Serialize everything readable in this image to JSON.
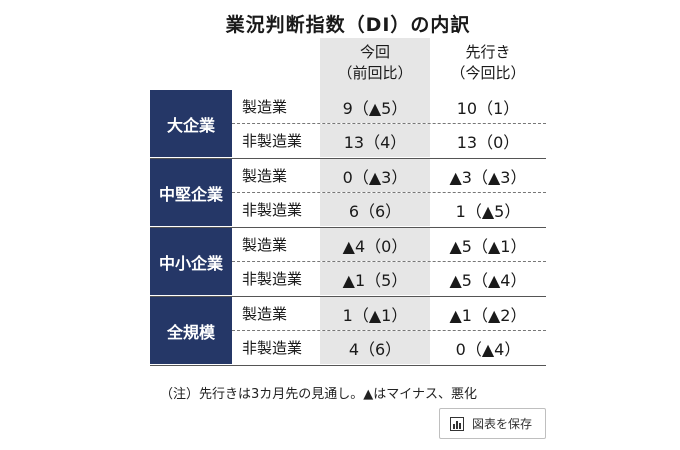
{
  "title": "業況判断指数（DI）の内訳",
  "headers": {
    "current": "今回",
    "current_sub": "（前回比）",
    "future": "先行き",
    "future_sub": "（今回比）"
  },
  "chart_data": {
    "type": "table",
    "groups": [
      {
        "name": "大企業",
        "rows": [
          {
            "label": "製造業",
            "current": "9（▲5）",
            "future": "10（1）"
          },
          {
            "label": "非製造業",
            "current": "13（4）",
            "future": "13（0）"
          }
        ]
      },
      {
        "name": "中堅企業",
        "rows": [
          {
            "label": "製造業",
            "current": "0（▲3）",
            "future": "▲3（▲3）"
          },
          {
            "label": "非製造業",
            "current": "6（6）",
            "future": "1（▲5）"
          }
        ]
      },
      {
        "name": "中小企業",
        "rows": [
          {
            "label": "製造業",
            "current": "▲4（0）",
            "future": "▲5（▲1）"
          },
          {
            "label": "非製造業",
            "current": "▲1（5）",
            "future": "▲5（▲4）"
          }
        ]
      },
      {
        "name": "全規模",
        "rows": [
          {
            "label": "製造業",
            "current": "1（▲1）",
            "future": "▲1（▲2）"
          },
          {
            "label": "非製造業",
            "current": "4（6）",
            "future": "0（▲4）"
          }
        ]
      }
    ]
  },
  "note": "（注）先行きは3カ月先の見通し。▲はマイナス、悪化",
  "save_button": {
    "label": "図表を保存",
    "icon": "bar-chart-icon"
  },
  "colors": {
    "group_bg": "#253767",
    "highlight_col": "#e6e6e6"
  }
}
